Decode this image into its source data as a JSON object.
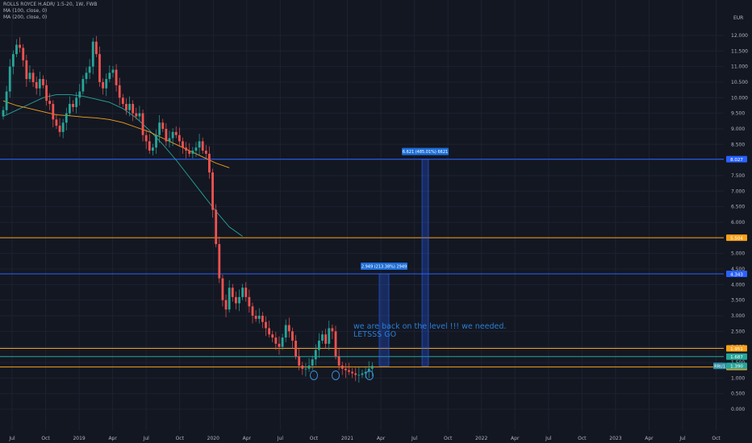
{
  "legend": {
    "symbol": "ROLLS ROYCE H.ADR/ 1:5-20, 1W, FWB",
    "ma1": "MA (100, close, 0)",
    "ma2": "MA (200, close, 0)"
  },
  "annotation": {
    "line1": "we are back on the level !!! we needed.",
    "line2": "LETSSS GO"
  },
  "chart_data": {
    "type": "candlestick",
    "currency": "EUR",
    "y_ticks": [
      "12.000",
      "11.500",
      "11.000",
      "10.500",
      "10.000",
      "9.500",
      "9.000",
      "8.500",
      "8.000",
      "7.500",
      "7.000",
      "6.500",
      "6.000",
      "5.500",
      "5.000",
      "4.500",
      "4.000",
      "3.500",
      "3.000",
      "2.500",
      "2.000",
      "1.500",
      "1.000",
      "0.500",
      "0.000"
    ],
    "ylim": [
      0,
      12.3
    ],
    "x_labels": [
      "Jul",
      "Oct",
      "2019",
      "Apr",
      "Jul",
      "Oct",
      "2020",
      "Apr",
      "Jul",
      "Oct",
      "2021",
      "Apr",
      "Jul",
      "Oct",
      "2022",
      "Apr",
      "Jul",
      "Oct",
      "2023",
      "Apr",
      "Jul",
      "Oct"
    ],
    "horizontal_levels": [
      {
        "value": 8.027,
        "label": "8.027",
        "color": "#2962ff"
      },
      {
        "value": 5.504,
        "label": "5.504",
        "color": "#f7a21b"
      },
      {
        "value": 4.343,
        "label": "4.343",
        "color": "#2962ff"
      },
      {
        "value": 1.951,
        "label": "1.951",
        "color": "#f7a21b"
      },
      {
        "value": 1.687,
        "label": "1.687",
        "color": "#26a69a"
      },
      {
        "value": 1.356,
        "label": "1.356",
        "color": "#f7a21b"
      }
    ],
    "current_price": {
      "symbol": "RRU1",
      "value": "1.390"
    },
    "measures": [
      {
        "label": "2.949 (213.38%) 2949",
        "from": 1.39,
        "to": 4.343
      },
      {
        "label": "6.621 (485.01%) 6621",
        "from": 1.39,
        "to": 8.027
      }
    ],
    "ma_100": [
      [
        0,
        9.4
      ],
      [
        4,
        9.6
      ],
      [
        8,
        9.8
      ],
      [
        12,
        10.0
      ],
      [
        16,
        10.1
      ],
      [
        20,
        10.1
      ],
      [
        24,
        10.05
      ],
      [
        28,
        9.95
      ],
      [
        32,
        9.85
      ],
      [
        36,
        9.65
      ],
      [
        40,
        9.35
      ],
      [
        44,
        8.95
      ],
      [
        48,
        8.5
      ],
      [
        52,
        8.0
      ],
      [
        56,
        7.45
      ],
      [
        60,
        6.9
      ],
      [
        64,
        6.35
      ],
      [
        68,
        5.85
      ],
      [
        72,
        5.55
      ]
    ],
    "ma_200": [
      [
        0,
        9.9
      ],
      [
        4,
        9.75
      ],
      [
        8,
        9.65
      ],
      [
        12,
        9.55
      ],
      [
        16,
        9.45
      ],
      [
        20,
        9.42
      ],
      [
        24,
        9.38
      ],
      [
        28,
        9.35
      ],
      [
        32,
        9.3
      ],
      [
        36,
        9.2
      ],
      [
        40,
        9.05
      ],
      [
        44,
        8.9
      ],
      [
        48,
        8.7
      ],
      [
        52,
        8.5
      ],
      [
        56,
        8.3
      ],
      [
        60,
        8.1
      ],
      [
        64,
        7.9
      ],
      [
        68,
        7.75
      ]
    ],
    "weekly_close": [
      9.6,
      10.2,
      11.0,
      11.4,
      11.7,
      11.6,
      11.2,
      10.6,
      10.8,
      10.5,
      10.3,
      10.6,
      10.4,
      9.9,
      9.8,
      9.3,
      9.1,
      8.9,
      9.2,
      9.5,
      9.8,
      9.7,
      10.0,
      10.2,
      10.6,
      10.8,
      11.0,
      11.8,
      11.4,
      10.5,
      10.3,
      10.6,
      10.8,
      10.9,
      10.4,
      10.0,
      9.8,
      9.6,
      9.8,
      9.5,
      9.4,
      9.5,
      8.8,
      8.6,
      8.3,
      8.4,
      8.8,
      9.2,
      9.0,
      8.6,
      8.7,
      8.9,
      8.8,
      8.6,
      8.4,
      8.3,
      8.2,
      8.3,
      8.4,
      8.6,
      8.3,
      8.2,
      7.6,
      6.4,
      5.3,
      4.2,
      3.5,
      3.2,
      3.9,
      3.6,
      3.4,
      3.6,
      3.9,
      3.6,
      3.3,
      3.0,
      2.9,
      3.0,
      2.8,
      2.6,
      2.4,
      2.3,
      2.1,
      2.0,
      2.3,
      2.7,
      2.5,
      2.2,
      1.7,
      1.4,
      1.3,
      1.3,
      1.4,
      1.6,
      1.9,
      2.2,
      2.4,
      2.1,
      2.6,
      2.5,
      1.7,
      1.4,
      1.3,
      1.25,
      1.2,
      1.15,
      1.1,
      1.1,
      1.15,
      1.2,
      1.3,
      1.39
    ]
  }
}
